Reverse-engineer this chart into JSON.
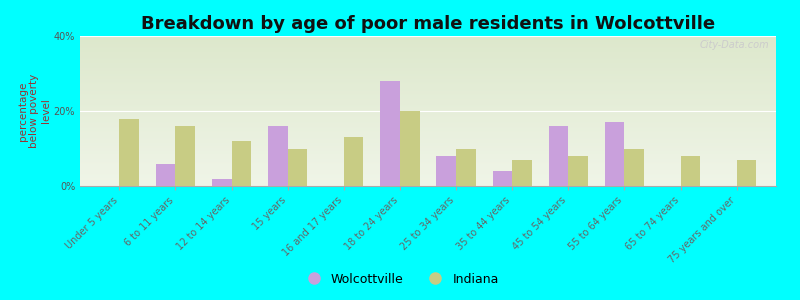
{
  "title": "Breakdown by age of poor male residents in Wolcottville",
  "ylabel": "percentage\nbelow poverty\nlevel",
  "categories": [
    "Under 5 years",
    "6 to 11 years",
    "12 to 14 years",
    "15 years",
    "16 and 17 years",
    "18 to 24 years",
    "25 to 34 years",
    "35 to 44 years",
    "45 to 54 years",
    "55 to 64 years",
    "65 to 74 years",
    "75 years and over"
  ],
  "wolcottville": [
    0,
    6,
    2,
    16,
    0,
    28,
    8,
    4,
    16,
    17,
    0,
    0
  ],
  "indiana": [
    18,
    16,
    12,
    10,
    13,
    20,
    10,
    7,
    8,
    10,
    8,
    7
  ],
  "wolcottville_color": "#c9a0dc",
  "indiana_color": "#c8cc84",
  "background_color": "#00ffff",
  "plot_bg_top": "#dde8cc",
  "plot_bg_bottom": "#f0f5e8",
  "ylim": [
    0,
    40
  ],
  "yticks": [
    0,
    20,
    40
  ],
  "ytick_labels": [
    "0%",
    "20%",
    "40%"
  ],
  "bar_width": 0.35,
  "title_fontsize": 13,
  "ylabel_fontsize": 7.5,
  "tick_fontsize": 7,
  "legend_wolcottville": "Wolcottville",
  "legend_indiana": "Indiana",
  "watermark": "City-Data.com"
}
